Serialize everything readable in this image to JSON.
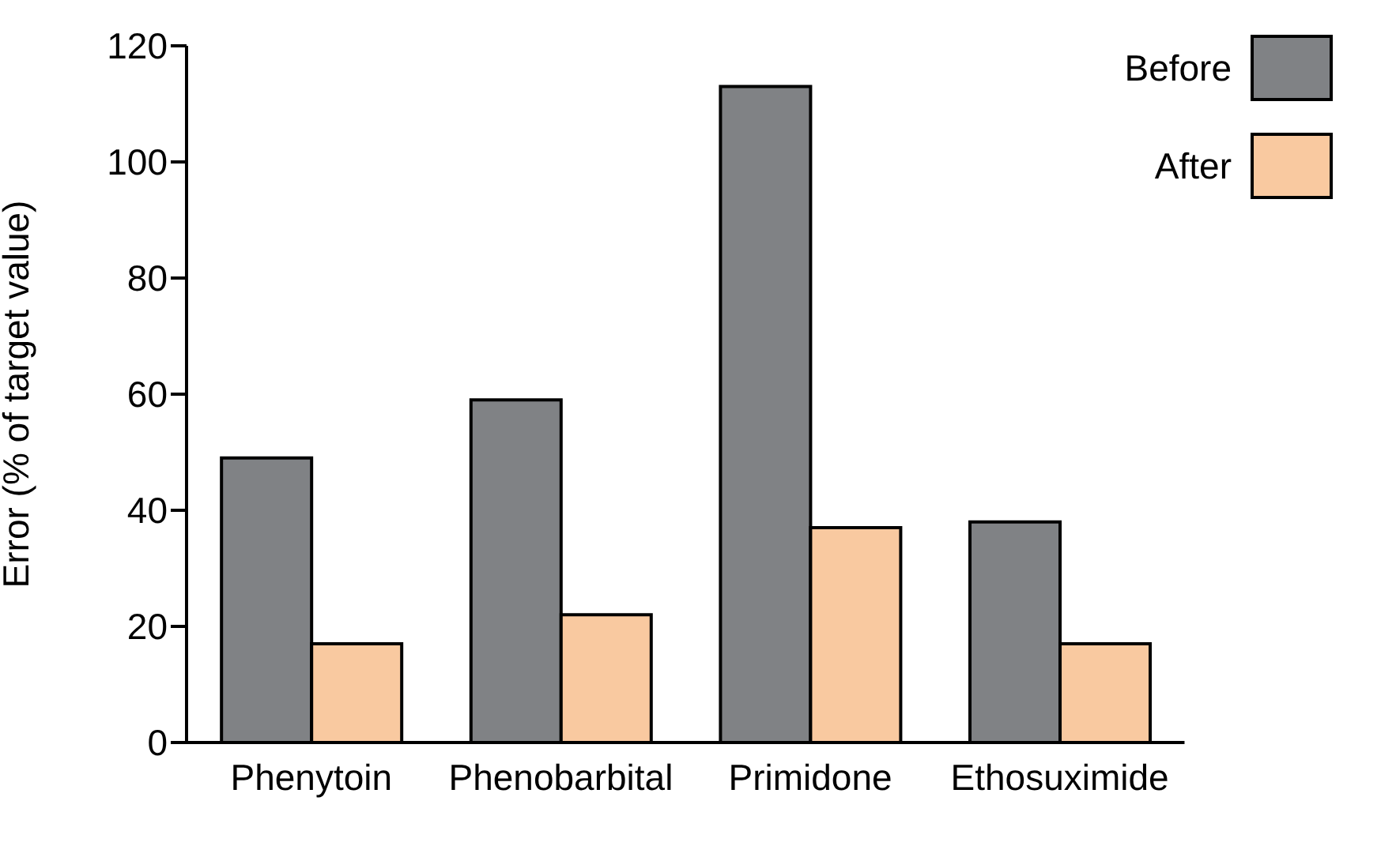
{
  "chart_data": {
    "type": "bar",
    "ylabel": "Error (% of target value)",
    "categories": [
      "Phenytoin",
      "Phenobarbital",
      "Primidone",
      "Ethosuximide"
    ],
    "series": [
      {
        "name": "Before",
        "color": "#808285",
        "values": [
          49,
          59,
          113,
          38
        ]
      },
      {
        "name": "After",
        "color": "#f9c9a0",
        "values": [
          17,
          22,
          37,
          17
        ]
      }
    ],
    "ylim": [
      0,
      120
    ],
    "yticks": [
      0,
      20,
      40,
      60,
      80,
      100,
      120
    ],
    "grid": false,
    "legend": "top right"
  }
}
